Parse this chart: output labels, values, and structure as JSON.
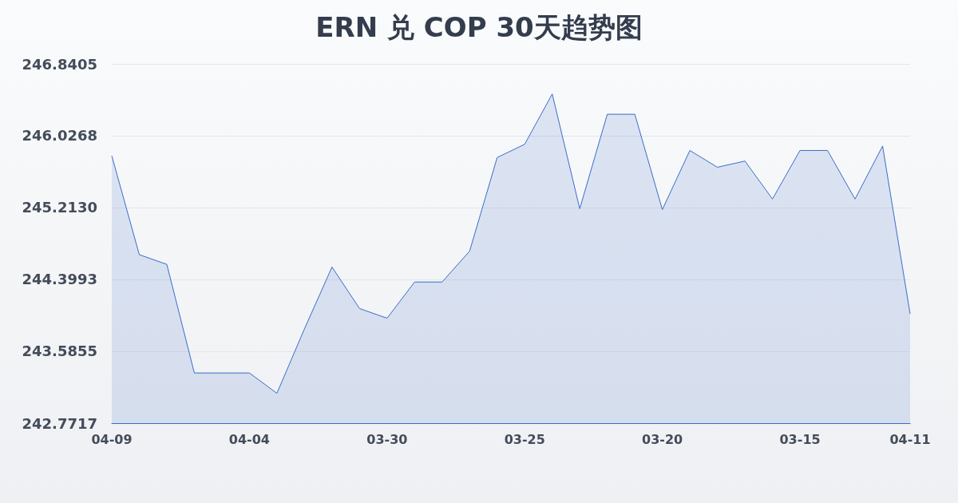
{
  "chart_data": {
    "type": "area",
    "title": "ERN 兑 COP 30天趋势图",
    "categories": [
      "04-09",
      null,
      null,
      null,
      null,
      "04-04",
      null,
      null,
      null,
      null,
      "03-30",
      null,
      null,
      null,
      null,
      "03-25",
      null,
      null,
      null,
      null,
      "03-20",
      null,
      null,
      null,
      null,
      "03-15",
      null,
      null,
      null,
      "04-11"
    ],
    "series": [
      {
        "color": "#3a6cc8",
        "values": [
          245.8,
          244.68,
          244.57,
          243.34,
          243.34,
          243.34,
          243.11,
          243.84,
          244.54,
          244.07,
          243.96,
          244.37,
          244.37,
          244.72,
          245.78,
          245.93,
          246.5,
          245.2,
          246.27,
          246.27,
          245.19,
          245.86,
          245.67,
          245.74,
          245.31,
          245.86,
          245.86,
          245.31,
          245.91,
          244.01
        ]
      }
    ],
    "ylim": [
      242.7717,
      246.8405
    ],
    "yticks": [
      242.7717,
      243.5855,
      244.3993,
      {
        "value": 245.213,
        "label": "245.2130"
      },
      246.0268,
      246.8405
    ],
    "grid": "y"
  }
}
